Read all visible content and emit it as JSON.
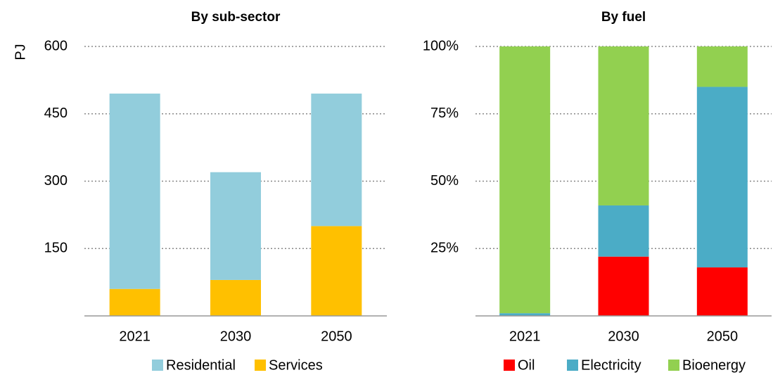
{
  "chart_data": [
    {
      "type": "stacked_bar",
      "title": "By sub-sector",
      "ylabel": "PJ",
      "categories": [
        "2021",
        "2030",
        "2050"
      ],
      "series": [
        {
          "name": "Residential",
          "color": "#92cddc",
          "values": [
            435,
            240,
            295
          ]
        },
        {
          "name": "Services",
          "color": "#ffc000",
          "values": [
            60,
            80,
            200
          ]
        }
      ],
      "ylim": [
        0,
        600
      ],
      "yticks": [
        150,
        300,
        450,
        600
      ],
      "grid": true
    },
    {
      "type": "stacked_bar",
      "title": "By fuel",
      "categories": [
        "2021",
        "2030",
        "2050"
      ],
      "series": [
        {
          "name": "Oil",
          "color": "#ff0000",
          "values": [
            0,
            22,
            18
          ]
        },
        {
          "name": "Electricity",
          "color": "#4bacc6",
          "values": [
            1,
            19,
            67
          ]
        },
        {
          "name": "Bioenergy",
          "color": "#92d050",
          "values": [
            99,
            59,
            15
          ]
        }
      ],
      "ylim": [
        0,
        100
      ],
      "yticks": [
        {
          "value": 25,
          "label": "25%"
        },
        {
          "value": 50,
          "label": "50%"
        },
        {
          "value": 75,
          "label": "75%"
        },
        {
          "value": 100,
          "label": "100%"
        }
      ],
      "grid": true
    }
  ]
}
